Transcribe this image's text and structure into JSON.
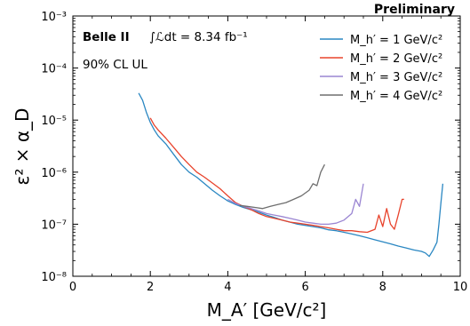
{
  "chart_data": {
    "type": "line",
    "preliminary": "Preliminary",
    "annotations": {
      "experiment": "Belle II",
      "luminosity": "∫ℒdt = 8.34 fb⁻¹",
      "cl": "90% CL UL"
    },
    "xlabel": "M_A′ [GeV/c²]",
    "ylabel": "ε² × α_D",
    "xlim": [
      0,
      10
    ],
    "ylim": [
      1e-08,
      0.001
    ],
    "yscale": "log",
    "xticks": [
      "0",
      "2",
      "4",
      "6",
      "8",
      "10"
    ],
    "yticks": [
      "10⁻⁸",
      "10⁻⁷",
      "10⁻⁶",
      "10⁻⁵",
      "10⁻⁴",
      "10⁻³"
    ],
    "legend_position": "top-right",
    "series": [
      {
        "name": "M_h′ = 1 GeV/c²",
        "color": "#2a87c2",
        "points": [
          [
            1.7,
            3.3e-05
          ],
          [
            1.8,
            2.4e-05
          ],
          [
            1.9,
            1.4e-05
          ],
          [
            2.0,
            9e-06
          ],
          [
            2.1,
            6.5e-06
          ],
          [
            2.2,
            5e-06
          ],
          [
            2.4,
            3.5e-06
          ],
          [
            2.6,
            2.2e-06
          ],
          [
            2.8,
            1.4e-06
          ],
          [
            3.0,
            1e-06
          ],
          [
            3.2,
            8e-07
          ],
          [
            3.4,
            6e-07
          ],
          [
            3.6,
            4.5e-07
          ],
          [
            3.8,
            3.5e-07
          ],
          [
            4.0,
            2.8e-07
          ],
          [
            4.2,
            2.4e-07
          ],
          [
            4.4,
            2.1e-07
          ],
          [
            4.6,
            1.9e-07
          ],
          [
            4.8,
            1.7e-07
          ],
          [
            5.0,
            1.5e-07
          ],
          [
            5.2,
            1.35e-07
          ],
          [
            5.4,
            1.2e-07
          ],
          [
            5.6,
            1.1e-07
          ],
          [
            5.8,
            1e-07
          ],
          [
            6.0,
            9.5e-08
          ],
          [
            6.2,
            9e-08
          ],
          [
            6.4,
            8.5e-08
          ],
          [
            6.6,
            7.8e-08
          ],
          [
            6.8,
            7.5e-08
          ],
          [
            7.0,
            7e-08
          ],
          [
            7.2,
            6.5e-08
          ],
          [
            7.4,
            6e-08
          ],
          [
            7.6,
            5.5e-08
          ],
          [
            7.8,
            5e-08
          ],
          [
            8.0,
            4.6e-08
          ],
          [
            8.2,
            4.2e-08
          ],
          [
            8.4,
            3.8e-08
          ],
          [
            8.6,
            3.5e-08
          ],
          [
            8.8,
            3.2e-08
          ],
          [
            9.0,
            3e-08
          ],
          [
            9.1,
            2.8e-08
          ],
          [
            9.2,
            2.4e-08
          ],
          [
            9.3,
            3.2e-08
          ],
          [
            9.4,
            4.5e-08
          ],
          [
            9.45,
            1e-07
          ],
          [
            9.5,
            2.5e-07
          ],
          [
            9.55,
            6e-07
          ]
        ]
      },
      {
        "name": "M_h′ = 2 GeV/c²",
        "color": "#e8432c",
        "points": [
          [
            2.0,
            1.1e-05
          ],
          [
            2.1,
            8e-06
          ],
          [
            2.2,
            6.5e-06
          ],
          [
            2.4,
            4.5e-06
          ],
          [
            2.6,
            3e-06
          ],
          [
            2.8,
            2e-06
          ],
          [
            3.0,
            1.4e-06
          ],
          [
            3.2,
            1e-06
          ],
          [
            3.4,
            8e-07
          ],
          [
            3.6,
            6.2e-07
          ],
          [
            3.8,
            4.8e-07
          ],
          [
            4.0,
            3.5e-07
          ],
          [
            4.2,
            2.6e-07
          ],
          [
            4.4,
            2.2e-07
          ],
          [
            4.6,
            1.9e-07
          ],
          [
            4.8,
            1.6e-07
          ],
          [
            5.0,
            1.4e-07
          ],
          [
            5.2,
            1.3e-07
          ],
          [
            5.4,
            1.2e-07
          ],
          [
            5.6,
            1.1e-07
          ],
          [
            5.8,
            1.05e-07
          ],
          [
            6.0,
            1e-07
          ],
          [
            6.2,
            9.5e-08
          ],
          [
            6.4,
            9e-08
          ],
          [
            6.6,
            8.5e-08
          ],
          [
            6.8,
            8e-08
          ],
          [
            7.0,
            7.5e-08
          ],
          [
            7.2,
            7.5e-08
          ],
          [
            7.4,
            7.2e-08
          ],
          [
            7.6,
            7e-08
          ],
          [
            7.8,
            8e-08
          ],
          [
            7.9,
            1.5e-07
          ],
          [
            8.0,
            9e-08
          ],
          [
            8.1,
            2e-07
          ],
          [
            8.2,
            1e-07
          ],
          [
            8.3,
            8e-08
          ],
          [
            8.4,
            1.5e-07
          ],
          [
            8.5,
            3e-07
          ],
          [
            8.55,
            3e-07
          ]
        ]
      },
      {
        "name": "M_h′ = 3 GeV/c²",
        "color": "#9a85d2",
        "points": [
          [
            4.0,
            3e-07
          ],
          [
            4.2,
            2.5e-07
          ],
          [
            4.4,
            2.2e-07
          ],
          [
            4.6,
            2e-07
          ],
          [
            4.8,
            1.8e-07
          ],
          [
            5.0,
            1.6e-07
          ],
          [
            5.2,
            1.5e-07
          ],
          [
            5.4,
            1.4e-07
          ],
          [
            5.6,
            1.3e-07
          ],
          [
            5.8,
            1.2e-07
          ],
          [
            6.0,
            1.1e-07
          ],
          [
            6.2,
            1.05e-07
          ],
          [
            6.4,
            1e-07
          ],
          [
            6.6,
            1e-07
          ],
          [
            6.8,
            1.05e-07
          ],
          [
            7.0,
            1.2e-07
          ],
          [
            7.2,
            1.6e-07
          ],
          [
            7.3,
            3e-07
          ],
          [
            7.4,
            2.2e-07
          ],
          [
            7.5,
            6e-07
          ]
        ]
      },
      {
        "name": "M_h′ = 4 GeV/c²",
        "color": "#6e6e6e",
        "points": [
          [
            4.3,
            2.3e-07
          ],
          [
            4.5,
            2.2e-07
          ],
          [
            4.7,
            2.1e-07
          ],
          [
            4.9,
            2e-07
          ],
          [
            5.1,
            2.2e-07
          ],
          [
            5.3,
            2.4e-07
          ],
          [
            5.5,
            2.6e-07
          ],
          [
            5.7,
            3e-07
          ],
          [
            5.9,
            3.5e-07
          ],
          [
            6.1,
            4.5e-07
          ],
          [
            6.2,
            6e-07
          ],
          [
            6.3,
            5.5e-07
          ],
          [
            6.4,
            1e-06
          ],
          [
            6.5,
            1.4e-06
          ]
        ]
      }
    ]
  }
}
